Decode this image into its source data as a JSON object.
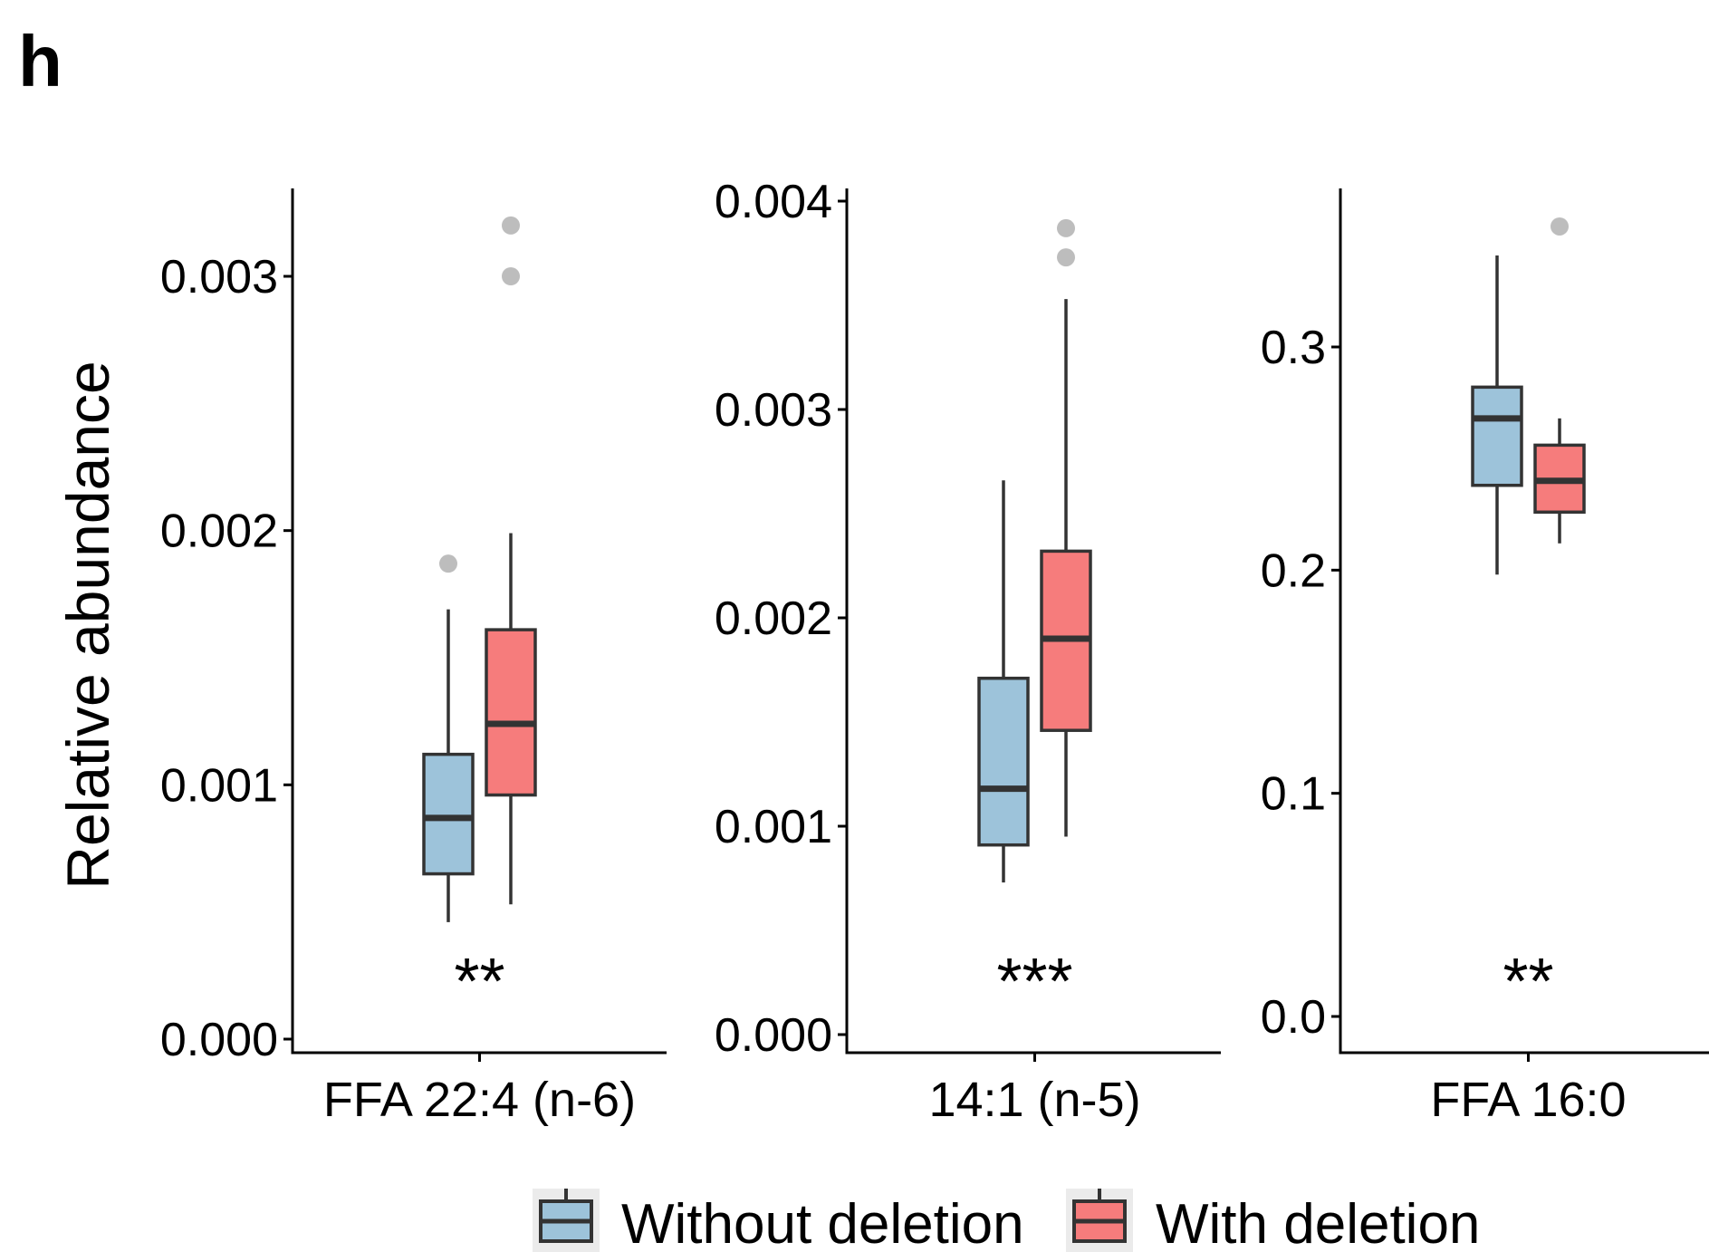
{
  "figure": {
    "panel_letter": "h",
    "ylabel": "Relative abundance"
  },
  "legend": {
    "entries": [
      {
        "label": "Without deletion",
        "color": "#9DC3DA"
      },
      {
        "label": "With deletion",
        "color": "#F67C7C"
      }
    ]
  },
  "chart_data": [
    {
      "type": "box",
      "xlabel": "FFA 22:4 (n-6)",
      "significance": "**",
      "ylim": [
        0,
        0.0034
      ],
      "yticks": [
        0,
        0.001,
        0.002,
        0.003
      ],
      "yticklabels": [
        "0.000",
        "0.001",
        "0.002",
        "0.003"
      ],
      "series": [
        {
          "name": "Without deletion",
          "min": 0.00046,
          "q1": 0.00065,
          "median": 0.00087,
          "q3": 0.00112,
          "max": 0.00169,
          "outliers": [
            0.00187
          ]
        },
        {
          "name": "With deletion",
          "min": 0.00053,
          "q1": 0.00096,
          "median": 0.00124,
          "q3": 0.00161,
          "max": 0.00199,
          "outliers": [
            0.003,
            0.0032
          ]
        }
      ]
    },
    {
      "type": "box",
      "xlabel": "14:1 (n-5)",
      "significance": "***",
      "ylim": [
        0,
        0.0041
      ],
      "yticks": [
        0,
        0.001,
        0.002,
        0.003,
        0.004
      ],
      "yticklabels": [
        "0.000",
        "0.001",
        "0.002",
        "0.003",
        "0.004"
      ],
      "series": [
        {
          "name": "Without deletion",
          "min": 0.00073,
          "q1": 0.00091,
          "median": 0.00118,
          "q3": 0.00171,
          "max": 0.00266,
          "outliers": []
        },
        {
          "name": "With deletion",
          "min": 0.00095,
          "q1": 0.00146,
          "median": 0.0019,
          "q3": 0.00232,
          "max": 0.00353,
          "outliers": [
            0.00373,
            0.00387
          ]
        }
      ]
    },
    {
      "type": "box",
      "xlabel": "FFA 16:0",
      "significance": "**",
      "ylim": [
        0,
        0.37
      ],
      "yticks": [
        0,
        0.1,
        0.2,
        0.3
      ],
      "yticklabels": [
        "0.0",
        "0.1",
        "0.2",
        "0.3"
      ],
      "series": [
        {
          "name": "Without deletion",
          "min": 0.198,
          "q1": 0.238,
          "median": 0.268,
          "q3": 0.282,
          "max": 0.341,
          "outliers": []
        },
        {
          "name": "With deletion",
          "min": 0.212,
          "q1": 0.226,
          "median": 0.24,
          "q3": 0.256,
          "max": 0.268,
          "outliers": [
            0.354
          ]
        }
      ]
    }
  ]
}
